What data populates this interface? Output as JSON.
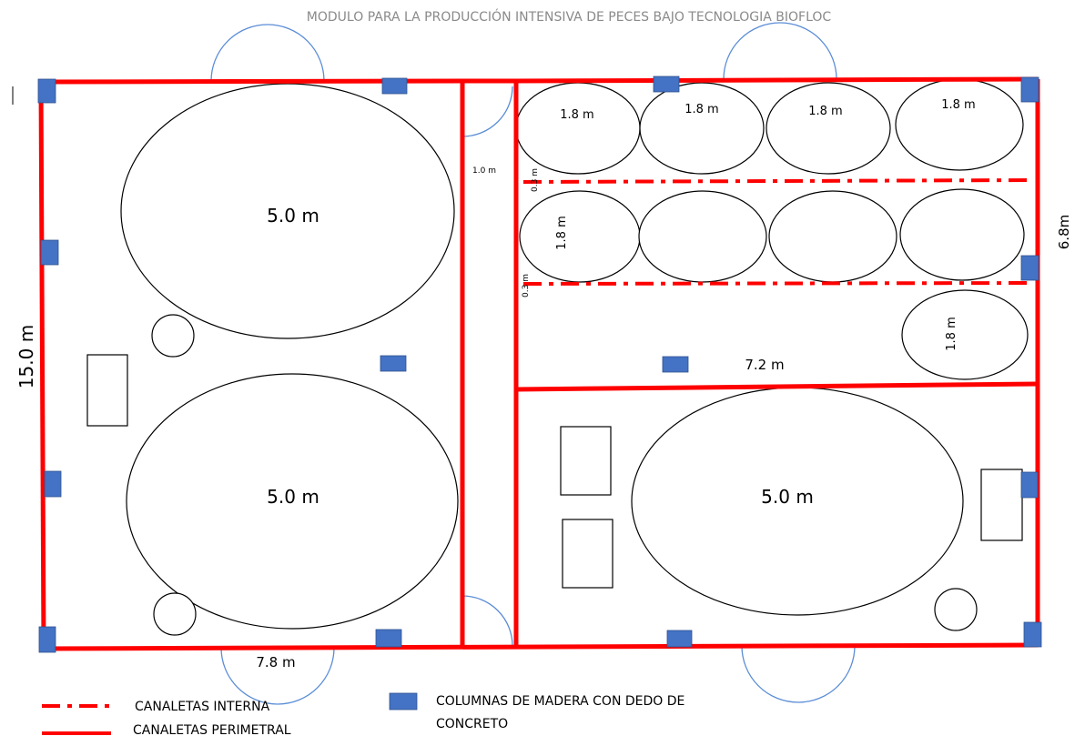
{
  "title": "MODULO PARA LA PRODUCCIÓN INTENSIVA DE PECES BAJO TECNOLOGIA BIOFLOC",
  "dimensions": {
    "height_left": "15.0 m",
    "width_bottom": "7.8 m",
    "height_right": "6.8m",
    "hatchery_width": "7.2 m",
    "corridor_width": "1.0 m",
    "channel_gap_1": "0.3 m",
    "channel_gap_2": "0.3 m"
  },
  "tanks": {
    "large": [
      "5.0 m",
      "5.0 m",
      "5.0 m"
    ],
    "small": [
      "1.8 m",
      "1.8 m",
      "1.8 m",
      "1.8 m",
      "1.8 m",
      "1.8 m"
    ]
  },
  "legend": {
    "internal_channel": "CANALETAS INTERNA",
    "perimeter_channel": "CANALETAS PERIMETRAL",
    "columns_line1": "COLUMNAS DE MADERA CON DEDO DE",
    "columns_line2": "CONCRETO"
  },
  "colors": {
    "channel": "#ff0000",
    "column": "#4472c4",
    "door": "#5b8dd6",
    "title": "#8a8a8a"
  }
}
